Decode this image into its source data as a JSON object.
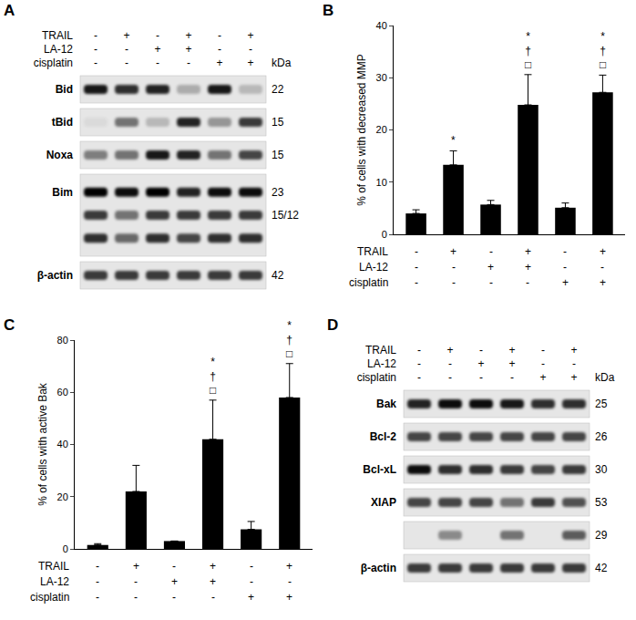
{
  "chart_data": [
    {
      "panel": "B",
      "type": "bar",
      "categories": [
        null,
        null,
        null,
        null,
        null,
        null
      ],
      "values": [
        4,
        13.3,
        5.7,
        24.8,
        5.1,
        27.2
      ],
      "errors": [
        0.7,
        2.7,
        0.8,
        5.8,
        0.9,
        3.3
      ],
      "color": "#000000",
      "ylim": [
        0,
        40
      ],
      "yticks": [
        0,
        10,
        20,
        30,
        40
      ],
      "y_label": "% of cells with decreased MMP",
      "grid": false,
      "tick_labels": "y",
      "significance": [
        [],
        [
          "*"
        ],
        [],
        [
          "*",
          "†",
          "□"
        ],
        [],
        [
          "*",
          "†",
          "□"
        ]
      ],
      "treatments": [
        {
          "name": "TRAIL",
          "values": [
            "-",
            "+",
            "-",
            "+",
            "-",
            "+"
          ]
        },
        {
          "name": "LA-12",
          "values": [
            "-",
            "-",
            "+",
            "+",
            "-",
            "-"
          ]
        },
        {
          "name": "cisplatin",
          "values": [
            "-",
            "-",
            "-",
            "-",
            "+",
            "+"
          ]
        }
      ]
    },
    {
      "panel": "C",
      "type": "bar",
      "categories": [
        null,
        null,
        null,
        null,
        null,
        null
      ],
      "values": [
        1.5,
        22,
        3,
        42,
        7.5,
        58
      ],
      "errors": [
        0.5,
        10,
        0,
        15,
        3,
        13
      ],
      "color": "#000000",
      "ylim": [
        0,
        80
      ],
      "yticks": [
        0,
        20,
        40,
        60,
        80
      ],
      "y_label": "% of cells with active Bak",
      "grid": false,
      "tick_labels": "y",
      "significance": [
        [],
        [],
        [],
        [
          "*",
          "†",
          "□"
        ],
        [],
        [
          "*",
          "†",
          "□"
        ]
      ],
      "treatments": [
        {
          "name": "TRAIL",
          "values": [
            "-",
            "+",
            "-",
            "+",
            "-",
            "+"
          ]
        },
        {
          "name": "LA-12",
          "values": [
            "-",
            "-",
            "+",
            "+",
            "-",
            "-"
          ]
        },
        {
          "name": "cisplatin",
          "values": [
            "-",
            "-",
            "-",
            "-",
            "+",
            "+"
          ]
        }
      ]
    }
  ],
  "blots": [
    {
      "panel": "A",
      "unit": "kDa",
      "treatments": [
        {
          "name": "TRAIL",
          "values": [
            "-",
            "+",
            "-",
            "+",
            "-",
            "+"
          ]
        },
        {
          "name": "LA-12",
          "values": [
            "-",
            "-",
            "+",
            "+",
            "-",
            "-"
          ]
        },
        {
          "name": "cisplatin",
          "values": [
            "-",
            "-",
            "-",
            "-",
            "+",
            "+"
          ]
        }
      ],
      "rows": [
        {
          "name": "Bid",
          "bands": [
            {
              "kda": "22",
              "intensities": [
                0.9,
                0.8,
                0.85,
                0.25,
                0.9,
                0.2
              ]
            }
          ]
        },
        {
          "name": "tBid",
          "bands": [
            {
              "kda": "15",
              "intensities": [
                0.05,
                0.5,
                0.2,
                0.85,
                0.35,
                0.75
              ]
            }
          ]
        },
        {
          "name": "Noxa",
          "bands": [
            {
              "kda": "15",
              "intensities": [
                0.45,
                0.5,
                0.9,
                0.85,
                0.5,
                0.7
              ]
            }
          ]
        },
        {
          "name": "Bim",
          "bands": [
            {
              "kda": "23",
              "intensities": [
                1,
                0.95,
                1,
                0.85,
                0.95,
                0.95
              ]
            },
            {
              "kda": "15/12",
              "intensities": [
                0.75,
                0.5,
                0.75,
                0.75,
                0.75,
                0.75
              ]
            },
            {
              "intensities": [
                0.8,
                0.55,
                0.8,
                0.7,
                0.8,
                0.8
              ]
            }
          ]
        },
        {
          "name": "β-actin",
          "bands": [
            {
              "kda": "42",
              "intensities": [
                0.75,
                0.75,
                0.75,
                0.75,
                0.75,
                0.75
              ]
            }
          ]
        }
      ]
    },
    {
      "panel": "D",
      "unit": "kDa",
      "treatments": [
        {
          "name": "TRAIL",
          "values": [
            "-",
            "+",
            "-",
            "+",
            "-",
            "+"
          ]
        },
        {
          "name": "LA-12",
          "values": [
            "-",
            "-",
            "+",
            "+",
            "-",
            "-"
          ]
        },
        {
          "name": "cisplatin",
          "values": [
            "-",
            "-",
            "-",
            "-",
            "+",
            "+"
          ]
        }
      ],
      "rows": [
        {
          "name": "Bak",
          "bands": [
            {
              "kda": "25",
              "intensities": [
                0.85,
                0.95,
                0.95,
                0.9,
                0.8,
                0.8
              ]
            }
          ]
        },
        {
          "name": "Bcl-2",
          "bands": [
            {
              "kda": "26",
              "intensities": [
                0.7,
                0.7,
                0.7,
                0.7,
                0.7,
                0.7
              ]
            }
          ]
        },
        {
          "name": "Bcl-xL",
          "bands": [
            {
              "kda": "30",
              "intensities": [
                0.95,
                0.8,
                0.8,
                0.75,
                0.7,
                0.75
              ]
            }
          ]
        },
        {
          "name": "XIAP",
          "bands": [
            {
              "kda": "53",
              "intensities": [
                0.7,
                0.7,
                0.7,
                0.5,
                0.75,
                0.65
              ]
            }
          ]
        },
        {
          "bands": [
            {
              "kda": "29",
              "intensities": [
                0,
                0.4,
                0,
                0.5,
                0,
                0.6
              ]
            }
          ]
        },
        {
          "name": "β-actin",
          "bands": [
            {
              "kda": "42",
              "intensities": [
                0.75,
                0.75,
                0.75,
                0.75,
                0.75,
                0.75
              ]
            }
          ]
        }
      ]
    }
  ]
}
